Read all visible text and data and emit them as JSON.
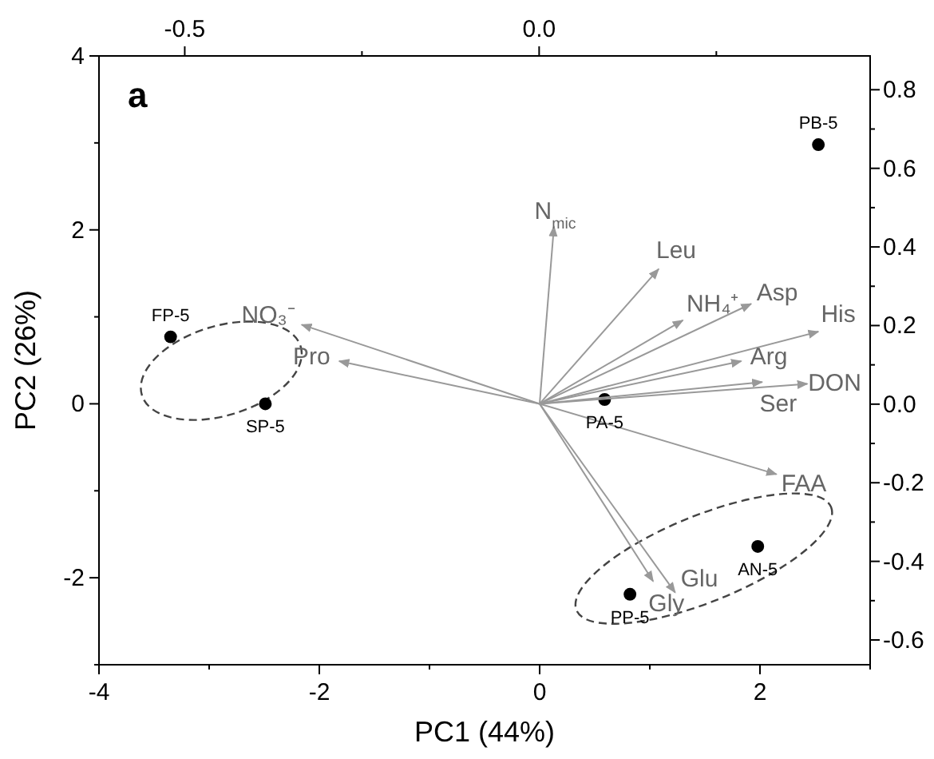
{
  "chart_data": {
    "type": "scatter",
    "xlabel": "PC1 (44%)",
    "ylabel": "PC2 (26%)",
    "xlim": [
      -4,
      3
    ],
    "xticks": [
      -4,
      {
        "value": -3,
        "label": null
      },
      -2,
      {
        "value": -1,
        "label": null
      },
      0,
      {
        "value": 1,
        "label": null
      },
      2,
      {
        "value": 3,
        "label": null
      }
    ],
    "ylim": [
      -3,
      4
    ],
    "yticks": [
      {
        "value": -3,
        "label": null
      },
      -2,
      {
        "value": -1,
        "label": null
      },
      0,
      {
        "value": 1,
        "label": null
      },
      2,
      {
        "value": 3,
        "label": null
      },
      4
    ],
    "x2lim": [
      -0.621,
      0.467
    ],
    "x2ticks": [
      -0.5,
      {
        "value": -0.25,
        "label": null
      },
      {
        "value": 0,
        "label": "0.0"
      },
      {
        "value": 0.25,
        "label": null
      }
    ],
    "y2lim": [
      -0.663,
      0.886
    ],
    "y2ticks": [
      -0.6,
      {
        "value": -0.5,
        "label": null
      },
      -0.4,
      {
        "value": -0.3,
        "label": null
      },
      -0.2,
      {
        "value": -0.1,
        "label": null
      },
      {
        "value": 0,
        "label": "0.0"
      },
      {
        "value": 0.1,
        "label": null
      },
      0.2,
      {
        "value": 0.3,
        "label": null
      },
      0.4,
      {
        "value": 0.5,
        "label": null
      },
      0.6,
      {
        "value": 0.7,
        "label": null
      },
      0.8
    ],
    "grid": false,
    "series": [
      {
        "color": "#000000",
        "marker": "circle",
        "x": [
          2.53,
          -3.35,
          -2.49,
          0.59,
          1.98,
          0.82
        ],
        "values": [
          2.98,
          0.77,
          0.0,
          0.05,
          -1.64,
          -2.19
        ]
      },
      {
        "type": "line",
        "name": "N$_{mic}$",
        "color": "#999999",
        "x": [
          0,
          0.13
        ],
        "values": [
          0,
          2.04
        ]
      },
      {
        "type": "line",
        "name": "Leu",
        "color": "#999999",
        "x": [
          0,
          1.08
        ],
        "values": [
          0,
          1.55
        ]
      },
      {
        "type": "line",
        "name": "NH₄⁺",
        "color": "#999999",
        "x": [
          0,
          1.3
        ],
        "values": [
          0,
          0.96
        ]
      },
      {
        "type": "line",
        "name": "Asp",
        "color": "#999999",
        "x": [
          0,
          1.92
        ],
        "values": [
          0,
          1.15
        ]
      },
      {
        "type": "line",
        "name": "His",
        "color": "#999999",
        "x": [
          0,
          2.53
        ],
        "values": [
          0,
          0.83
        ]
      },
      {
        "type": "line",
        "name": "Arg",
        "color": "#999999",
        "x": [
          0,
          1.83
        ],
        "values": [
          0,
          0.49
        ]
      },
      {
        "type": "line",
        "name": "Ser",
        "color": "#999999",
        "x": [
          0,
          2.02
        ],
        "values": [
          0,
          0.25
        ]
      },
      {
        "type": "line",
        "name": "DON",
        "color": "#999999",
        "x": [
          0,
          2.43
        ],
        "values": [
          0,
          0.23
        ]
      },
      {
        "type": "line",
        "name": "NO₃⁻",
        "color": "#999999",
        "x": [
          0,
          -2.16
        ],
        "values": [
          0,
          0.91
        ]
      },
      {
        "type": "line",
        "name": "Pro",
        "color": "#999999",
        "x": [
          0,
          -1.82
        ],
        "values": [
          0,
          0.49
        ]
      },
      {
        "type": "line",
        "name": "FAA",
        "color": "#999999",
        "x": [
          0,
          2.15
        ],
        "values": [
          0,
          -0.81
        ]
      },
      {
        "type": "line",
        "name": "Gly",
        "color": "#999999",
        "x": [
          0,
          1.03
        ],
        "values": [
          0,
          -2.04
        ]
      },
      {
        "type": "line",
        "name": "Glu",
        "color": "#999999",
        "x": [
          0,
          1.23
        ],
        "values": [
          0,
          -2.17
        ]
      }
    ],
    "annotations": [
      "a",
      {
        "text": "PB-5",
        "x": 2.53,
        "y": 2.98
      },
      {
        "text": "FP-5",
        "x": -3.35,
        "y": 0.77
      },
      {
        "text": "SP-5",
        "x": -2.49,
        "y": 0.0
      },
      {
        "text": "PA-5",
        "x": 0.59,
        "y": 0.05
      },
      {
        "text": "AN-5",
        "x": 1.98,
        "y": -1.64
      },
      {
        "text": "PP-5",
        "x": 0.82,
        "y": -2.19
      }
    ]
  }
}
